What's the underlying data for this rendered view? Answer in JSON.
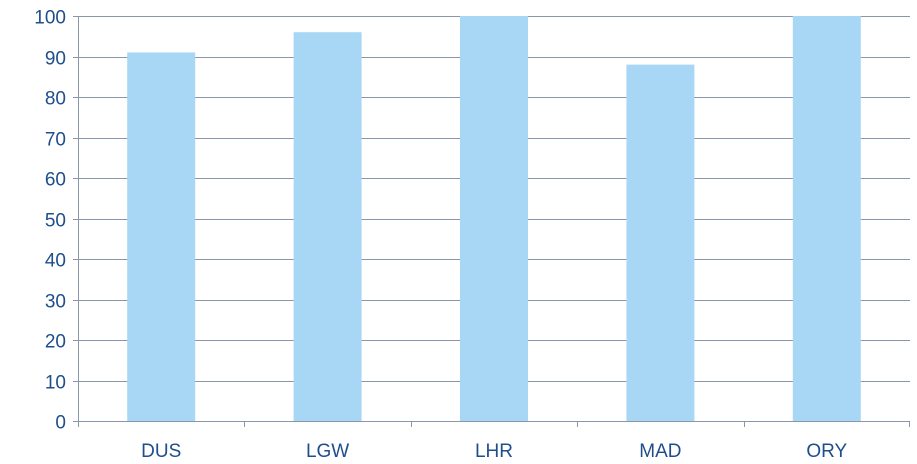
{
  "chart_data": {
    "type": "bar",
    "title": "",
    "xlabel": "",
    "ylabel": "",
    "categories": [
      "DUS",
      "LGW",
      "LHR",
      "MAD",
      "ORY"
    ],
    "values": [
      91,
      96,
      100,
      88,
      100
    ],
    "ylim": [
      0,
      100
    ],
    "yticks": [
      0,
      10,
      20,
      30,
      40,
      50,
      60,
      70,
      80,
      90,
      100
    ],
    "grid": true,
    "legend": "none"
  },
  "colors": {
    "bar": "#a8d7f5",
    "grid": "#8a97ab",
    "axis": "#8a97ab",
    "label": "#1f4e8c"
  }
}
